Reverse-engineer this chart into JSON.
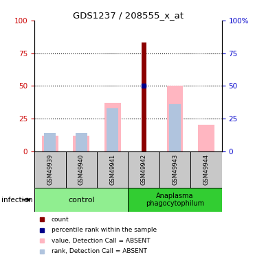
{
  "title": "GDS1237 / 208555_x_at",
  "samples": [
    "GSM49939",
    "GSM49940",
    "GSM49941",
    "GSM49942",
    "GSM49943",
    "GSM49944"
  ],
  "count_values": [
    0,
    0,
    0,
    83,
    0,
    0
  ],
  "percentile_values": [
    0,
    0,
    0,
    50,
    0,
    0
  ],
  "detection_absent_value": [
    12,
    12,
    37,
    0,
    50,
    20
  ],
  "detection_absent_rank": [
    14,
    14,
    33,
    0,
    36,
    0
  ],
  "ylim_left": [
    0,
    100
  ],
  "ylim_right": [
    0,
    100
  ],
  "yticks": [
    0,
    25,
    50,
    75,
    100
  ],
  "ytick_labels_right": [
    "0",
    "25",
    "50",
    "75",
    "100%"
  ],
  "count_color": "#8b0000",
  "percentile_color": "#00008b",
  "absent_value_color": "#ffb6c1",
  "absent_rank_color": "#b0c4de",
  "axis_color_left": "#cc0000",
  "axis_color_right": "#0000cc",
  "bg_plot": "#ffffff",
  "bg_xtick": "#c8c8c8",
  "control_color": "#90EE90",
  "anaplasma_color": "#32CD32",
  "control_label": "control",
  "anaplasma_label": "Anaplasma\nphagocytophilum",
  "infection_label": "infection",
  "legend_items": [
    {
      "color": "#8b0000",
      "label": "count"
    },
    {
      "color": "#00008b",
      "label": "percentile rank within the sample"
    },
    {
      "color": "#ffb6c1",
      "label": "value, Detection Call = ABSENT"
    },
    {
      "color": "#b0c4de",
      "label": "rank, Detection Call = ABSENT"
    }
  ]
}
